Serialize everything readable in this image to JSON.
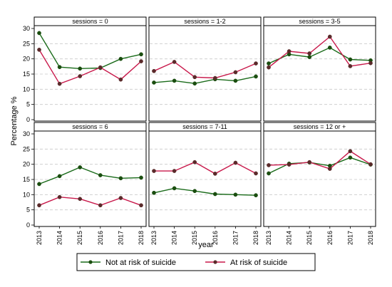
{
  "chart_data": {
    "type": "line",
    "ylabel": "Percentage %",
    "xlabel": "year",
    "x": [
      "2013",
      "2014",
      "2015",
      "2016",
      "2017",
      "2018"
    ],
    "ylim": [
      0,
      30
    ],
    "yticks": [
      0,
      5,
      10,
      15,
      20,
      25,
      30
    ],
    "grid": true,
    "legend": "bottom",
    "series_legend": [
      {
        "name": "Not at risk of suicide",
        "color": "#1a6b1a",
        "marker": "#1a4d0f"
      },
      {
        "name": "At risk of suicide",
        "color": "#c8184a",
        "marker": "#5a2a2a"
      }
    ],
    "panels": [
      {
        "title": "sessions = 0",
        "series": [
          {
            "name": "Not at risk of suicide",
            "values": [
              28.5,
              17.3,
              16.8,
              17.0,
              20.0,
              21.5
            ]
          },
          {
            "name": "At risk of suicide",
            "values": [
              23.0,
              11.8,
              14.3,
              17.2,
              13.2,
              19.2
            ]
          }
        ]
      },
      {
        "title": "sessions = 1-2",
        "series": [
          {
            "name": "Not at risk of suicide",
            "values": [
              12.2,
              12.8,
              11.9,
              13.3,
              12.8,
              14.2
            ]
          },
          {
            "name": "At risk of suicide",
            "values": [
              16.0,
              19.0,
              14.0,
              13.7,
              15.6,
              18.5
            ]
          }
        ]
      },
      {
        "title": "sessions = 3-5",
        "series": [
          {
            "name": "Not at risk of suicide",
            "values": [
              18.5,
              21.5,
              20.6,
              23.7,
              19.8,
              19.5
            ]
          },
          {
            "name": "At risk of suicide",
            "values": [
              17.2,
              22.5,
              21.8,
              27.3,
              17.6,
              18.6
            ]
          }
        ]
      },
      {
        "title": "sessions = 6",
        "series": [
          {
            "name": "Not at risk of suicide",
            "values": [
              13.5,
              16.1,
              19.0,
              16.4,
              15.4,
              15.6
            ]
          },
          {
            "name": "At risk of suicide",
            "values": [
              6.5,
              9.2,
              8.6,
              6.5,
              8.9,
              6.5
            ]
          }
        ]
      },
      {
        "title": "sessions = 7-11",
        "series": [
          {
            "name": "Not at risk of suicide",
            "values": [
              10.6,
              12.1,
              11.2,
              10.2,
              10.0,
              9.8
            ]
          },
          {
            "name": "At risk of suicide",
            "values": [
              17.8,
              17.8,
              20.7,
              16.9,
              20.5,
              17.0
            ]
          }
        ]
      },
      {
        "title": "sessions = 12 or +",
        "series": [
          {
            "name": "Not at risk of suicide",
            "values": [
              17.0,
              20.2,
              20.6,
              19.5,
              22.2,
              19.9
            ]
          },
          {
            "name": "At risk of suicide",
            "values": [
              19.7,
              19.9,
              20.7,
              18.5,
              24.3,
              20.0
            ]
          }
        ]
      }
    ]
  }
}
